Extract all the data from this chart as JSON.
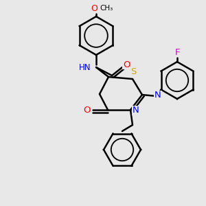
{
  "bg_color": "#e8e8e8",
  "atom_colors": {
    "C": "#000000",
    "N": "#0000ff",
    "O": "#ff0000",
    "S": "#ccaa00",
    "F": "#cc00cc",
    "H": "#777777"
  },
  "bond_color": "#000000",
  "bond_width": 1.8
}
